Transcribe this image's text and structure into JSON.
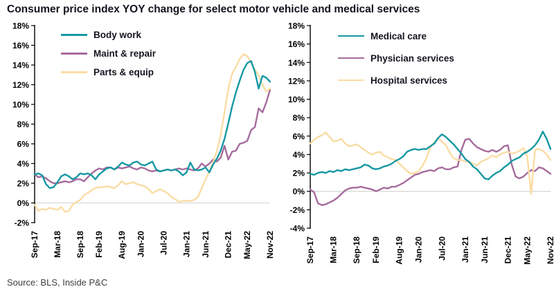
{
  "title": "Consumer price index YOY change for select motor vehicle and medical services",
  "source": "Source: BLS, Inside P&C",
  "colors": {
    "teal": "#1598A2",
    "purple": "#A66B9D",
    "peach": "#FADCA4",
    "zero_line": "#D9D9D9",
    "axis": "#000000"
  },
  "chart_data": [
    {
      "type": "line",
      "panel": "motor-vehicle-services",
      "x_frequency": "monthly",
      "x_range": [
        "Sep-17",
        "Nov-22"
      ],
      "ylim": [
        -2,
        18
      ],
      "grid": "zero-line-only",
      "legend_position": "top-left-inside",
      "y_tick_labels": [
        "18%",
        "16%",
        "14%",
        "12%",
        "10%",
        "8%",
        "6%",
        "4%",
        "2%",
        "0%",
        "-2%"
      ],
      "x_tick_labels": [
        "Sep-17",
        "Mar-18",
        "Sep-18",
        "Feb-19",
        "Aug-19",
        "Jan-20",
        "Jul-20",
        "Jan-21",
        "Jun-21",
        "Dec-21",
        "May-22",
        "Nov-22"
      ],
      "x_tick_indices": [
        0,
        6,
        12,
        17,
        23,
        28,
        34,
        40,
        45,
        51,
        56,
        62
      ],
      "series": [
        {
          "name": "Body work",
          "color": "teal",
          "values": [
            2.9,
            3.0,
            2.8,
            1.9,
            1.5,
            1.6,
            2.1,
            2.7,
            2.9,
            2.7,
            2.4,
            2.6,
            3.0,
            2.9,
            3.0,
            2.8,
            2.4,
            2.9,
            3.2,
            3.5,
            3.6,
            3.4,
            3.7,
            4.1,
            3.9,
            3.8,
            4.1,
            4.2,
            3.9,
            3.8,
            4.0,
            4.2,
            3.4,
            3.2,
            3.3,
            3.4,
            3.3,
            3.4,
            3.2,
            2.8,
            3.1,
            4.1,
            3.4,
            3.3,
            3.4,
            3.6,
            3.1,
            3.9,
            4.5,
            5.3,
            6.5,
            8.1,
            9.8,
            11.2,
            12.4,
            13.5,
            14.2,
            14.4,
            13.3,
            11.6,
            12.9,
            12.7,
            12.3
          ]
        },
        {
          "name": "Maint & repair",
          "color": "purple",
          "values": [
            2.9,
            2.6,
            2.7,
            2.5,
            2.2,
            2.0,
            2.0,
            2.1,
            2.2,
            2.1,
            2.2,
            2.4,
            2.4,
            2.2,
            2.6,
            3.0,
            3.3,
            3.5,
            3.4,
            3.6,
            3.6,
            3.4,
            3.6,
            3.5,
            3.6,
            3.7,
            3.5,
            3.4,
            3.6,
            3.5,
            3.3,
            3.2,
            3.3,
            3.2,
            3.3,
            3.4,
            3.3,
            3.4,
            3.5,
            3.4,
            3.5,
            3.4,
            3.3,
            3.5,
            4.0,
            3.7,
            4.0,
            4.4,
            4.2,
            4.6,
            5.8,
            4.4,
            5.2,
            5.3,
            6.0,
            6.1,
            6.3,
            7.4,
            7.7,
            9.6,
            9.2,
            10.2,
            11.5
          ]
        },
        {
          "name": "Parts & equip",
          "color": "peach",
          "values": [
            -0.2,
            -0.8,
            -0.6,
            -0.7,
            -0.5,
            -0.6,
            -0.7,
            -0.4,
            -0.9,
            -0.8,
            -0.2,
            0.1,
            0.3,
            0.8,
            1.0,
            1.3,
            1.5,
            1.6,
            1.6,
            1.7,
            1.6,
            1.5,
            1.8,
            2.2,
            1.9,
            2.0,
            2.1,
            1.9,
            1.8,
            1.7,
            1.4,
            1.0,
            1.2,
            1.4,
            1.2,
            1.0,
            0.6,
            0.4,
            0.1,
            0.2,
            0.2,
            0.2,
            0.3,
            0.6,
            1.5,
            2.4,
            3.2,
            4.1,
            5.3,
            6.9,
            9.2,
            11.6,
            13.1,
            13.8,
            14.6,
            15.1,
            14.9,
            14.2,
            13.5,
            13.0,
            12.0,
            11.3,
            11.6
          ]
        }
      ]
    },
    {
      "type": "line",
      "panel": "medical-services",
      "x_frequency": "monthly",
      "x_range": [
        "Sep-17",
        "Nov-22"
      ],
      "ylim": [
        -4,
        18
      ],
      "grid": "zero-line-only",
      "legend_position": "top-left-inside",
      "y_tick_labels": [
        "18%",
        "16%",
        "14%",
        "12%",
        "10%",
        "8%",
        "6%",
        "4%",
        "2%",
        "0%",
        "-2%",
        "-4%"
      ],
      "x_tick_labels": [
        "Sep-17",
        "Mar-18",
        "Sep-18",
        "Feb-19",
        "Aug-19",
        "Jan-20",
        "Jul-20",
        "Jan-21",
        "Jun-21",
        "Dec-21",
        "May-22",
        "Nov-22"
      ],
      "x_tick_indices": [
        0,
        6,
        12,
        17,
        23,
        28,
        34,
        40,
        45,
        51,
        56,
        62
      ],
      "series": [
        {
          "name": "Medical care",
          "color": "teal",
          "values": [
            1.9,
            1.8,
            2.0,
            2.1,
            2.0,
            2.2,
            2.1,
            2.3,
            2.2,
            2.4,
            2.3,
            2.4,
            2.5,
            2.6,
            2.9,
            2.8,
            2.5,
            2.4,
            2.5,
            2.7,
            2.8,
            3.0,
            3.3,
            3.5,
            3.8,
            4.3,
            4.5,
            4.6,
            4.5,
            4.6,
            4.6,
            4.9,
            5.2,
            5.8,
            6.2,
            5.9,
            5.5,
            5.1,
            4.6,
            4.1,
            3.5,
            3.2,
            2.7,
            2.4,
            1.9,
            1.4,
            1.3,
            1.7,
            2.0,
            2.2,
            2.6,
            2.9,
            3.3,
            3.5,
            3.7,
            4.1,
            4.3,
            4.6,
            5.0,
            5.6,
            6.5,
            5.7,
            4.6
          ]
        },
        {
          "name": "Physician services",
          "color": "purple",
          "values": [
            0.2,
            -0.1,
            -1.3,
            -1.5,
            -1.4,
            -1.2,
            -1.0,
            -0.7,
            -0.3,
            0.1,
            0.3,
            0.4,
            0.4,
            0.5,
            0.4,
            0.3,
            0.2,
            0.0,
            0.2,
            0.4,
            0.3,
            0.5,
            0.5,
            0.7,
            0.9,
            1.2,
            1.5,
            1.8,
            1.9,
            2.1,
            2.2,
            2.3,
            2.2,
            2.5,
            2.6,
            2.4,
            2.4,
            2.6,
            2.7,
            4.5,
            5.6,
            5.7,
            5.2,
            4.8,
            4.6,
            4.4,
            4.3,
            4.5,
            4.3,
            4.5,
            4.9,
            5.0,
            2.9,
            1.6,
            1.4,
            1.6,
            2.0,
            2.3,
            2.2,
            2.6,
            2.5,
            2.2,
            1.9
          ]
        },
        {
          "name": "Hospital services",
          "color": "peach",
          "values": [
            5.2,
            5.6,
            5.9,
            6.1,
            6.4,
            5.9,
            5.4,
            5.5,
            5.7,
            5.2,
            4.9,
            5.0,
            5.1,
            4.8,
            4.5,
            4.2,
            4.0,
            4.2,
            4.3,
            3.9,
            3.7,
            3.5,
            3.4,
            3.0,
            2.6,
            2.2,
            1.9,
            2.0,
            2.2,
            2.8,
            3.6,
            4.8,
            5.3,
            5.8,
            5.4,
            5.0,
            4.2,
            3.6,
            3.4,
            3.4,
            3.2,
            3.2,
            3.0,
            2.8,
            3.2,
            3.4,
            3.6,
            3.9,
            3.7,
            4.0,
            4.2,
            4.3,
            4.1,
            4.2,
            4.4,
            4.7,
            3.8,
            -0.3,
            4.5,
            4.6,
            4.4,
            4.0,
            3.4
          ]
        }
      ]
    }
  ]
}
